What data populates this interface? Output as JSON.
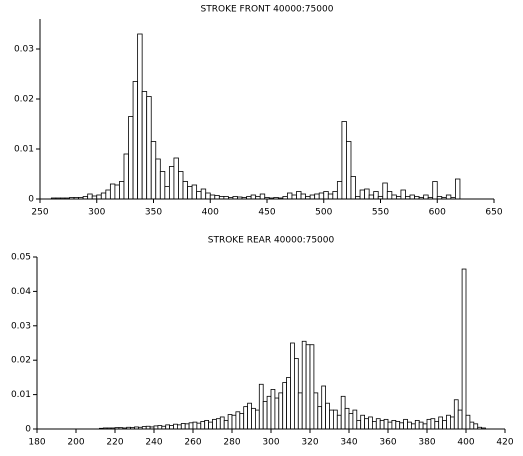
{
  "chart_data": [
    {
      "type": "histogram",
      "title": "STROKE FRONT 40000:75000",
      "color": "#ffffff",
      "bins": [
        260,
        264,
        268,
        272,
        276,
        280,
        284,
        288,
        292,
        296,
        300,
        304,
        308,
        312,
        316,
        320,
        324,
        328,
        332,
        336,
        340,
        344,
        348,
        352,
        356,
        360,
        364,
        368,
        372,
        376,
        380,
        384,
        388,
        392,
        396,
        400,
        404,
        408,
        412,
        416,
        420,
        424,
        428,
        432,
        436,
        440,
        444,
        448,
        452,
        456,
        460,
        464,
        468,
        472,
        476,
        480,
        484,
        488,
        492,
        496,
        500,
        504,
        508,
        512,
        516,
        520,
        524,
        528,
        532,
        536,
        540,
        544,
        548,
        552,
        556,
        560,
        564,
        568,
        572,
        576,
        580,
        584,
        588,
        592,
        596,
        600,
        604,
        608,
        612,
        616,
        620
      ],
      "values": [
        0.0002,
        0.0002,
        0.0002,
        0.0002,
        0.0003,
        0.0003,
        0.0003,
        0.0005,
        0.001,
        0.0006,
        0.0008,
        0.0012,
        0.0018,
        0.003,
        0.0028,
        0.0035,
        0.009,
        0.0165,
        0.0235,
        0.033,
        0.0215,
        0.0205,
        0.0115,
        0.008,
        0.0055,
        0.0025,
        0.0065,
        0.0082,
        0.0055,
        0.0035,
        0.0025,
        0.0028,
        0.0015,
        0.002,
        0.0012,
        0.0008,
        0.0007,
        0.0005,
        0.0005,
        0.0003,
        0.0005,
        0.0004,
        0.0003,
        0.0005,
        0.0008,
        0.0005,
        0.001,
        0.0003,
        0.0002,
        0.0003,
        0.0002,
        0.0005,
        0.0012,
        0.0008,
        0.0015,
        0.001,
        0.0005,
        0.0008,
        0.001,
        0.0012,
        0.0015,
        0.001,
        0.0015,
        0.0035,
        0.0155,
        0.0115,
        0.0045,
        0.0005,
        0.0018,
        0.002,
        0.0008,
        0.0015,
        0.0005,
        0.0032,
        0.0015,
        0.0008,
        0.0005,
        0.0018,
        0.0005,
        0.0008,
        0.0005,
        0.0003,
        0.0008,
        0.0003,
        0.0035,
        0.0005,
        0.0003,
        0.0008,
        0.0003,
        0.004
      ],
      "xlim": [
        250,
        650
      ],
      "xticks": [
        250,
        300,
        350,
        400,
        450,
        500,
        550,
        600,
        650
      ],
      "ylim": [
        0,
        0.036
      ],
      "yticks": [
        0,
        0.01,
        0.02,
        0.03
      ]
    },
    {
      "type": "histogram",
      "title": "STROKE REAR 40000:75000",
      "color": "#ffffff",
      "bins": [
        212,
        214,
        216,
        218,
        220,
        222,
        224,
        226,
        228,
        230,
        232,
        234,
        236,
        238,
        240,
        242,
        244,
        246,
        248,
        250,
        252,
        254,
        256,
        258,
        260,
        262,
        264,
        266,
        268,
        270,
        272,
        274,
        276,
        278,
        280,
        282,
        284,
        286,
        288,
        290,
        292,
        294,
        296,
        298,
        300,
        302,
        304,
        306,
        308,
        310,
        312,
        314,
        316,
        318,
        320,
        322,
        324,
        326,
        328,
        330,
        332,
        334,
        336,
        338,
        340,
        342,
        344,
        346,
        348,
        350,
        352,
        354,
        356,
        358,
        360,
        362,
        364,
        366,
        368,
        370,
        372,
        374,
        376,
        378,
        380,
        382,
        384,
        386,
        388,
        390,
        392,
        394,
        396,
        398,
        400,
        402,
        404,
        406,
        408,
        410
      ],
      "values": [
        0.0002,
        0.0003,
        0.0003,
        0.0003,
        0.0004,
        0.0004,
        0.0003,
        0.0005,
        0.0004,
        0.0006,
        0.0005,
        0.0007,
        0.0008,
        0.0006,
        0.0009,
        0.001,
        0.0008,
        0.0012,
        0.001,
        0.0014,
        0.0012,
        0.0016,
        0.0015,
        0.0018,
        0.002,
        0.0017,
        0.0022,
        0.0025,
        0.002,
        0.0028,
        0.003,
        0.0035,
        0.0025,
        0.0042,
        0.004,
        0.005,
        0.0045,
        0.0065,
        0.0075,
        0.006,
        0.0055,
        0.013,
        0.008,
        0.0095,
        0.0115,
        0.009,
        0.0105,
        0.0135,
        0.015,
        0.025,
        0.0205,
        0.0105,
        0.0255,
        0.0245,
        0.0245,
        0.0105,
        0.0065,
        0.0125,
        0.0075,
        0.0055,
        0.0055,
        0.004,
        0.0095,
        0.006,
        0.0045,
        0.0055,
        0.0025,
        0.004,
        0.003,
        0.0035,
        0.0022,
        0.003,
        0.0025,
        0.0028,
        0.002,
        0.0025,
        0.0022,
        0.0018,
        0.0028,
        0.002,
        0.0015,
        0.0025,
        0.002,
        0.0015,
        0.0028,
        0.003,
        0.0022,
        0.0035,
        0.0025,
        0.004,
        0.0035,
        0.0085,
        0.0055,
        0.0465,
        0.004,
        0.002,
        0.0015,
        0.0005,
        0.0003
      ],
      "xlim": [
        180,
        420
      ],
      "xticks": [
        180,
        200,
        220,
        240,
        260,
        280,
        300,
        320,
        340,
        360,
        380,
        400,
        420
      ],
      "ylim": [
        0,
        0.05
      ],
      "yticks": [
        0,
        0.01,
        0.02,
        0.03,
        0.04,
        0.05
      ]
    }
  ]
}
